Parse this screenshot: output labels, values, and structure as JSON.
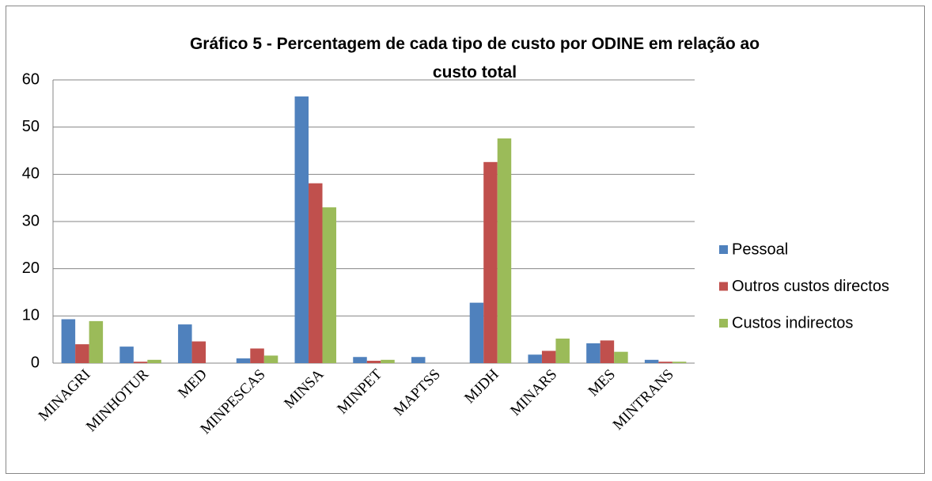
{
  "chart_data": {
    "type": "bar",
    "title": "Gráfico 5 - Percentagem de cada tipo de custo por ODINE em relação ao custo total",
    "categories": [
      "MINAGRI",
      "MINHOTUR",
      "MED",
      "MINPESCAS",
      "MINSA",
      "MINPET",
      "MAPTSS",
      "MJDH",
      "MINARS",
      "MES",
      "MINTRANS"
    ],
    "series": [
      {
        "name": "Pessoal",
        "color": "#4f81bd",
        "values": [
          9.3,
          3.5,
          8.2,
          1.0,
          56.5,
          1.3,
          1.3,
          12.8,
          1.8,
          4.2,
          0.7
        ]
      },
      {
        "name": "Outros custos directos",
        "color": "#c0504d",
        "values": [
          4.0,
          0.3,
          4.6,
          3.1,
          38.1,
          0.5,
          0,
          42.6,
          2.6,
          4.8,
          0.3
        ]
      },
      {
        "name": "Custos indirectos",
        "color": "#9bbb59",
        "values": [
          8.9,
          0.7,
          0,
          1.6,
          33.0,
          0.7,
          0,
          47.6,
          5.2,
          2.4,
          0.3
        ]
      }
    ],
    "ylim": [
      0,
      60
    ],
    "yticks": [
      0,
      10,
      20,
      30,
      40,
      50,
      60
    ],
    "grid": true,
    "legend": "right"
  }
}
